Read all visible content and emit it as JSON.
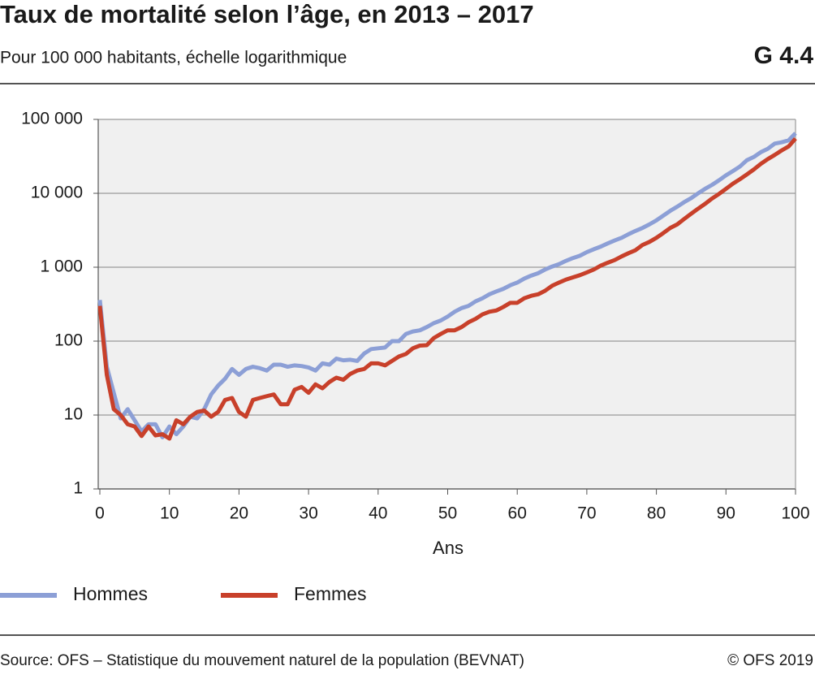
{
  "chart_data": {
    "type": "line",
    "title": "Taux de mortalité selon l’âge, en 2013 – 2017",
    "subtitle": "Pour 100 000 habitants, échelle logarithmique",
    "code": "G 4.4",
    "x_label": "Ans",
    "source": "Source: OFS – Statistique du mouvement naturel de la population (BEVNAT)",
    "copyright": "© OFS 2019",
    "log_scale": true,
    "grid": true,
    "legend_position": "bottom",
    "x": [
      0,
      1,
      2,
      3,
      4,
      5,
      6,
      7,
      8,
      9,
      10,
      11,
      12,
      13,
      14,
      15,
      16,
      17,
      18,
      19,
      20,
      21,
      22,
      23,
      24,
      25,
      26,
      27,
      28,
      29,
      30,
      31,
      32,
      33,
      34,
      35,
      36,
      37,
      38,
      39,
      40,
      41,
      42,
      43,
      44,
      45,
      46,
      47,
      48,
      49,
      50,
      51,
      52,
      53,
      54,
      55,
      56,
      57,
      58,
      59,
      60,
      61,
      62,
      63,
      64,
      65,
      66,
      67,
      68,
      69,
      70,
      71,
      72,
      73,
      74,
      75,
      76,
      77,
      78,
      79,
      80,
      81,
      82,
      83,
      84,
      85,
      86,
      87,
      88,
      89,
      90,
      91,
      92,
      93,
      94,
      95,
      96,
      97,
      98,
      99,
      100
    ],
    "xlim": [
      0,
      100
    ],
    "xticks": [
      0,
      10,
      20,
      30,
      40,
      50,
      60,
      70,
      80,
      90,
      100
    ],
    "ylim": [
      1,
      100000
    ],
    "yticks": [
      {
        "value": 100000,
        "label": "100 000"
      },
      {
        "value": 10000,
        "label": "10 000"
      },
      {
        "value": 1000,
        "label": "1 000"
      },
      100,
      10,
      1
    ],
    "series": [
      {
        "name": "Hommes",
        "color": "#8c9fd6",
        "values": [
          360,
          45,
          20,
          9,
          12,
          8.5,
          6,
          7.5,
          7.5,
          5,
          7,
          5.5,
          7,
          9.5,
          9,
          12,
          19,
          25,
          31,
          42,
          35,
          42,
          45,
          43,
          40,
          48,
          48,
          45,
          47,
          46,
          44,
          40,
          50,
          48,
          58,
          55,
          56,
          54,
          68,
          78,
          80,
          82,
          100,
          100,
          125,
          135,
          140,
          155,
          175,
          190,
          215,
          250,
          280,
          300,
          345,
          380,
          430,
          470,
          510,
          570,
          620,
          700,
          770,
          830,
          930,
          1020,
          1100,
          1220,
          1330,
          1430,
          1600,
          1750,
          1900,
          2100,
          2300,
          2500,
          2800,
          3100,
          3400,
          3800,
          4300,
          5000,
          5800,
          6600,
          7600,
          8600,
          10000,
          11500,
          13000,
          15000,
          17500,
          20000,
          23000,
          28000,
          31000,
          36000,
          40000,
          47000,
          49000,
          52000,
          65000
        ]
      },
      {
        "name": "Femmes",
        "color": "#c8402a",
        "values": [
          300,
          35,
          12,
          10,
          7.5,
          7,
          5.2,
          7,
          5.3,
          5.5,
          4.8,
          8.5,
          7.5,
          9.5,
          11,
          11.5,
          9.5,
          11,
          16,
          17,
          11,
          9.5,
          16,
          17,
          18,
          19,
          14,
          14,
          22,
          24,
          20,
          26,
          23,
          28,
          32,
          30,
          36,
          40,
          42,
          50,
          50,
          47,
          54,
          62,
          67,
          80,
          87,
          88,
          110,
          125,
          140,
          140,
          155,
          180,
          200,
          230,
          250,
          260,
          290,
          330,
          330,
          380,
          410,
          430,
          480,
          560,
          620,
          680,
          730,
          780,
          850,
          930,
          1050,
          1150,
          1250,
          1400,
          1550,
          1700,
          2000,
          2200,
          2500,
          2900,
          3400,
          3800,
          4500,
          5300,
          6200,
          7200,
          8500,
          9800,
          11500,
          13500,
          15500,
          18000,
          21000,
          25000,
          29000,
          33000,
          38000,
          43000,
          55000
        ]
      }
    ]
  }
}
